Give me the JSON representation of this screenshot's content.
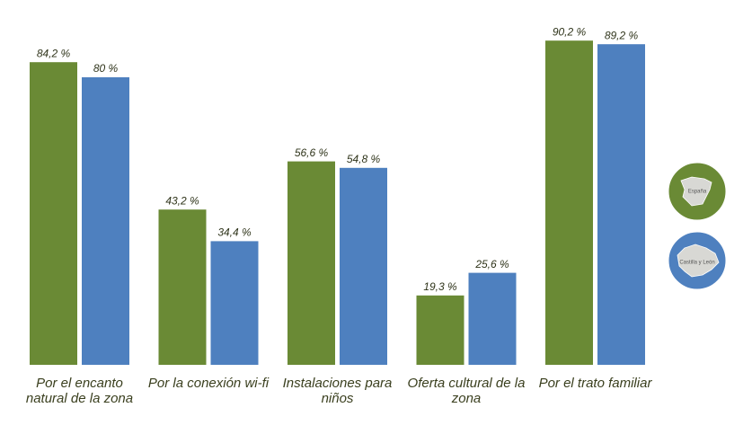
{
  "chart_data": {
    "type": "bar",
    "categories": [
      "Por el encanto natural de la zona",
      "Por la conexión wi-fi",
      "Instalaciones para niños",
      "Oferta cultural de la zona",
      "Por el trato familiar"
    ],
    "series": [
      {
        "name": "España",
        "color": "#6a8a35",
        "values": [
          84.2,
          43.2,
          56.6,
          19.3,
          90.2
        ],
        "value_labels": [
          "84,2 %",
          "43,2 %",
          "56,6 %",
          "19,3 %",
          "90,2 %"
        ]
      },
      {
        "name": "Castilla y León",
        "color": "#4e80bf",
        "values": [
          80,
          34.4,
          54.8,
          25.6,
          89.2
        ],
        "value_labels": [
          "80 %",
          "34,4 %",
          "54,8 %",
          "25,6 %",
          "89,2 %"
        ]
      }
    ],
    "ylim": [
      0,
      100
    ]
  }
}
